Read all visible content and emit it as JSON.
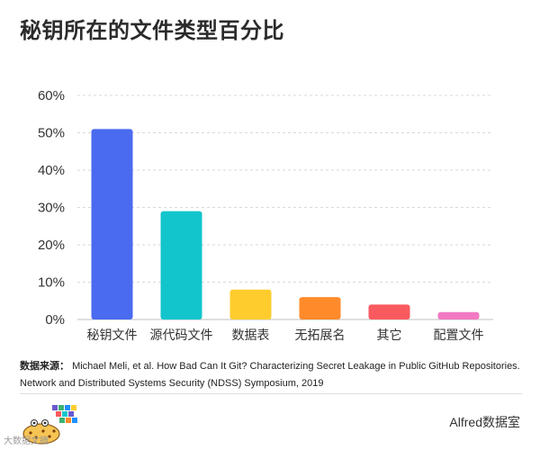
{
  "chart_data": {
    "type": "bar",
    "title": "秘钥所在的文件类型百分比",
    "categories": [
      "秘钥文件",
      "源代码文件",
      "数据表",
      "无拓展名",
      "其它",
      "配置文件"
    ],
    "values": [
      51,
      29,
      8,
      6,
      4,
      2
    ],
    "value_unit": "%",
    "ylim": [
      0,
      60
    ],
    "yticks": [
      "0%",
      "10%",
      "20%",
      "30%",
      "40%",
      "50%",
      "60%"
    ],
    "grid": true,
    "colors": [
      "#4a6bf0",
      "#12c5cc",
      "#ffcc2e",
      "#ff8a2a",
      "#f95a5f",
      "#f27ac2"
    ]
  },
  "source": {
    "label": "数据来源：",
    "line1": "Michael Meli, et al.  How Bad Can It Git? Characterizing Secret Leakage in Public GitHub Repositories.",
    "line2": "Network and Distributed Systems Security (NDSS) Symposium, 2019"
  },
  "watermark": "大数据文摘",
  "brand": "Alfred数据室",
  "logo_icon": "data-mascot-logo"
}
